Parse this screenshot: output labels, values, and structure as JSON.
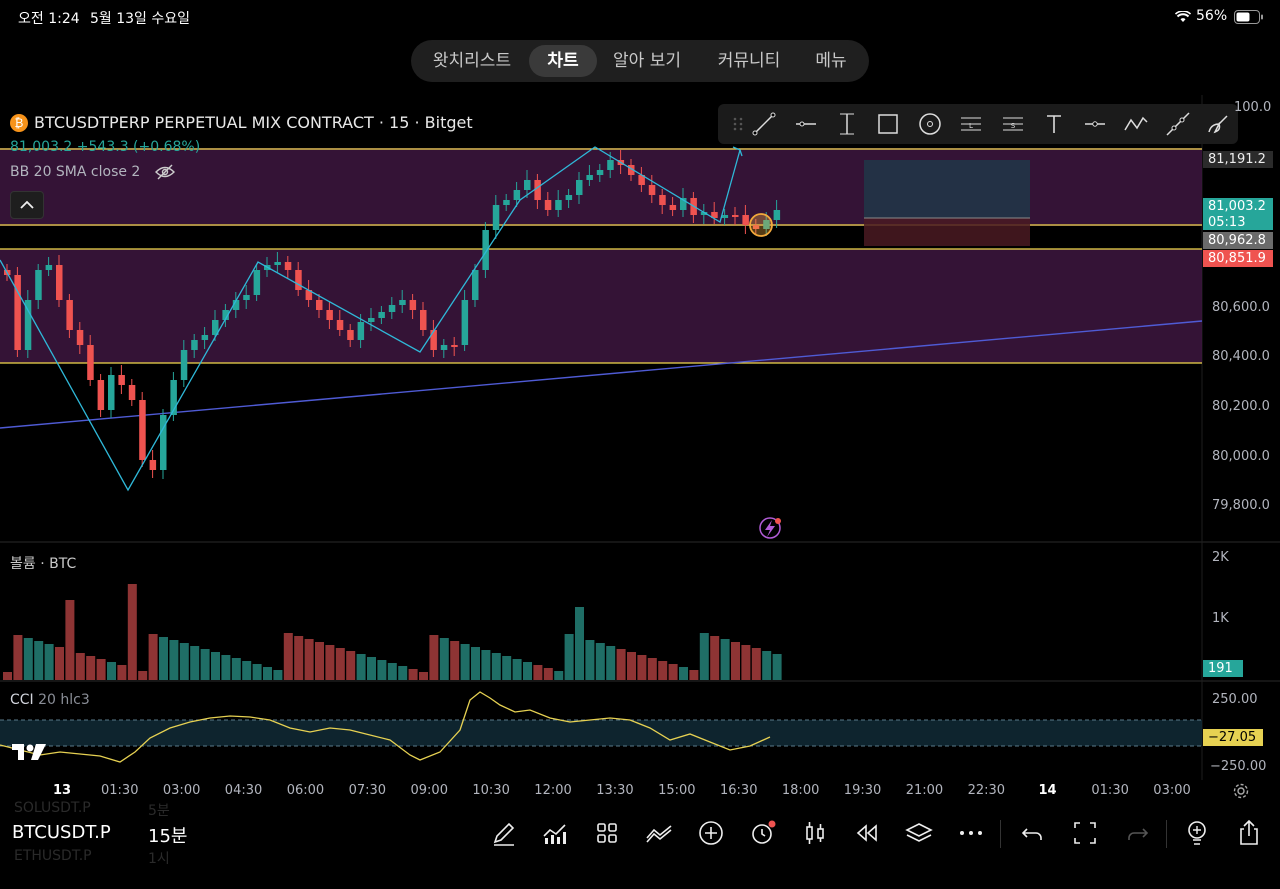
{
  "status_bar": {
    "time": "오전 1:24",
    "date": "5월 13일 수요일",
    "battery": "56%"
  },
  "nav_tabs": [
    {
      "label": "왓치리스트",
      "active": false
    },
    {
      "label": "차트",
      "active": true
    },
    {
      "label": "알아 보기",
      "active": false
    },
    {
      "label": "커뮤니티",
      "active": false
    },
    {
      "label": "메뉴",
      "active": false
    }
  ],
  "symbol": {
    "title": "BTCUSDTPERP PERPETUAL MIX CONTRACT · 15 · Bitget",
    "price_line": "81,003.2 +543.3 (+0.68%)",
    "indicator": "BB 20 SMA close 2"
  },
  "price_axis": {
    "top_partial": "100.0",
    "ticks": [
      "80,600.0",
      "80,400.0",
      "80,200.0",
      "80,000.0",
      "79,800.0"
    ]
  },
  "price_tags": {
    "upper": "81,191.2",
    "current": "81,003.2",
    "countdown": "05:13",
    "mid": "80,962.8",
    "lower": "80,851.9"
  },
  "volume": {
    "label": "볼륨 · BTC",
    "ticks": [
      "2K",
      "1K"
    ],
    "value": "191"
  },
  "cci": {
    "label": "CCI",
    "params": "20 hlc3",
    "ticks": [
      "250.00",
      "−250.00"
    ],
    "value": "−27.05"
  },
  "time_axis": [
    "13",
    "01:30",
    "03:00",
    "04:30",
    "06:00",
    "07:30",
    "09:00",
    "10:30",
    "12:00",
    "13:30",
    "15:00",
    "16:30",
    "18:00",
    "19:30",
    "21:00",
    "22:30",
    "14",
    "01:30",
    "03:00"
  ],
  "bottom": {
    "symbol": "BTCUSDT.P",
    "interval": "15분",
    "ghost_top_symbol": "SOLUSDT.P",
    "ghost_top_interval": "5분",
    "ghost_bottom_symbol": "ETHUSDT.P",
    "ghost_bottom_interval": "1시"
  },
  "colors": {
    "up": "#26a69a",
    "down": "#ef5350",
    "band": "#4a1a4f",
    "yellow": "#f2d94e",
    "cyan": "#2fb8d8",
    "trend": "#4f5bd5"
  }
}
